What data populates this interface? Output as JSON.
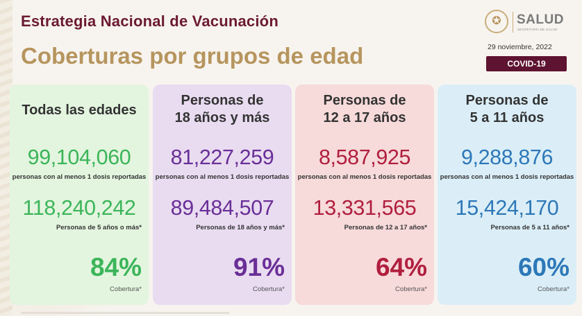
{
  "header": {
    "title": "Estrategia Nacional de Vacunación",
    "subtitle": "Coberturas por grupos de edad"
  },
  "logo": {
    "name": "SALUD",
    "sub": "SECRETARÍA DE SALUD"
  },
  "date": "29 noviembre, 2022",
  "badge": "COVID-19",
  "cards": [
    {
      "title_line1": "Todas las edades",
      "title_line2": "",
      "value1": "99,104,060",
      "label1": "personas con al menos 1 dosis reportadas",
      "value2": "118,240,242",
      "label2": "Personas de 5 años o más*",
      "coverage": "84%",
      "coverage_label": "Cobertura*",
      "color": "#3cb55a"
    },
    {
      "title_line1": "Personas de",
      "title_line2": "18 años y más",
      "value1": "81,227,259",
      "label1": "personas con al menos 1 dosis reportadas",
      "value2": "89,484,507",
      "label2": "Personas de 18 años y más*",
      "coverage": "91%",
      "coverage_label": "Cobertura*",
      "color": "#6a2f97"
    },
    {
      "title_line1": "Personas de",
      "title_line2": "12 a 17 años",
      "value1": "8,587,925",
      "label1": "personas con al menos 1 dosis reportadas",
      "value2": "13,331,565",
      "label2": "Personas de 12 a 17 años*",
      "coverage": "64%",
      "coverage_label": "Cobertura*",
      "color": "#b01f3e"
    },
    {
      "title_line1": "Personas de",
      "title_line2": "5 a 11 años",
      "value1": "9,288,876",
      "label1": "personas con al menos 1 dosis reportadas",
      "value2": "15,424,170",
      "label2": "Personas de 5 a 11 años*",
      "coverage": "60%",
      "coverage_label": "Cobertura*",
      "color": "#2d78b8"
    }
  ]
}
